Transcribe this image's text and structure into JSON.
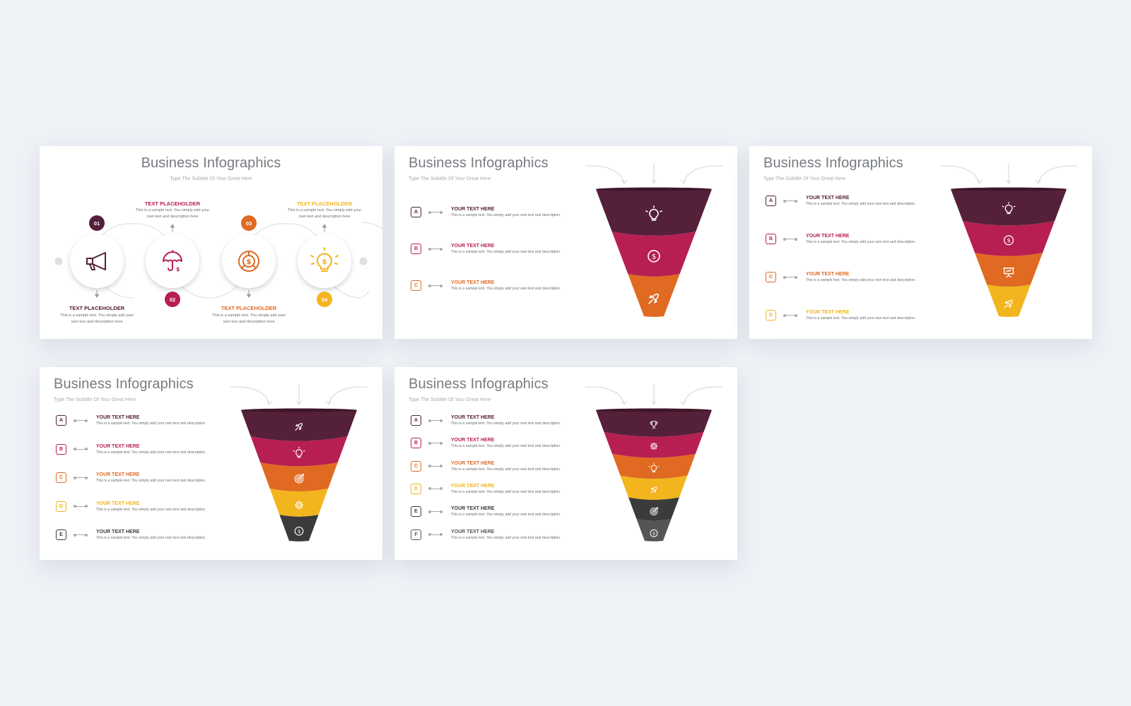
{
  "colors": {
    "plum": "#55203a",
    "crimson": "#b71f52",
    "orange": "#e06a22",
    "yellow": "#f2b51d",
    "charcoal": "#3b3b3b",
    "gray": "#555555"
  },
  "slides": [
    {
      "title": "Business Infographics",
      "subtitle": "Type The Subtitle Of Your Great Here",
      "steps": [
        {
          "number": "01",
          "title": "TEXT PLACEHOLDER",
          "desc": "This is a sample text. You simply add your own text and description here",
          "icon": "megaphone-icon"
        },
        {
          "number": "02",
          "title": "TEXT PLACEHOLDER",
          "desc": "This is a sample text. You simply add your own text and description here",
          "icon": "umbrella-dollar-icon"
        },
        {
          "number": "03",
          "title": "TEXT PLACEHOLDER",
          "desc": "This is a sample text. You simply add your own text and description here",
          "icon": "dollar-chart-icon"
        },
        {
          "number": "04",
          "title": "TEXT PLACEHOLDER",
          "desc": "This is a sample text. You simply add your own text and description here",
          "icon": "lightbulb-dollar-icon"
        }
      ]
    },
    {
      "title": "Business Infographics",
      "subtitle": "Type The Subtitle Of Your Great Here",
      "items": [
        {
          "letter": "A",
          "title": "YOUR TEXT HERE",
          "desc": "This is a sample text. You simply add your own text and description."
        },
        {
          "letter": "B",
          "title": "YOUR TEXT HERE",
          "desc": "This is a sample text. You simply add your own text and description."
        },
        {
          "letter": "C",
          "title": "YOUR TEXT HERE",
          "desc": "This is a sample text. You simply add your own text and description."
        }
      ],
      "funnel_icons": [
        "lightbulb-icon",
        "dollar-icon",
        "rocket-icon"
      ]
    },
    {
      "title": "Business Infographics",
      "subtitle": "Type The Subtitle Of Your Great Here",
      "items": [
        {
          "letter": "A",
          "title": "YOUR TEXT HERE",
          "desc": "This is a sample text. You simply add your own text and description."
        },
        {
          "letter": "B",
          "title": "YOUR TEXT HERE",
          "desc": "This is a sample text. You simply add your own text and description."
        },
        {
          "letter": "C",
          "title": "YOUR TEXT HERE",
          "desc": "This is a sample text. You simply add your own text and description."
        },
        {
          "letter": "D",
          "title": "YOUR TEXT HERE",
          "desc": "This is a sample text. You simply add your own text and description."
        }
      ],
      "funnel_icons": [
        "lightbulb-icon",
        "dollar-icon",
        "presentation-icon",
        "rocket-icon"
      ]
    },
    {
      "title": "Business Infographics",
      "subtitle": "Type The Subtitle Of Your Great Here",
      "items": [
        {
          "letter": "A",
          "title": "YOUR TEXT HERE",
          "desc": "This is a sample text. You simply add your own text and description."
        },
        {
          "letter": "B",
          "title": "YOUR TEXT HERE",
          "desc": "This is a sample text. You simply add your own text and description."
        },
        {
          "letter": "C",
          "title": "YOUR TEXT HERE",
          "desc": "This is a sample text. You simply add your own text and description."
        },
        {
          "letter": "D",
          "title": "YOUR TEXT HERE",
          "desc": "This is a sample text. You simply add your own text and description."
        },
        {
          "letter": "E",
          "title": "YOUR TEXT HERE",
          "desc": "This is a sample text. You simply add your own text and description."
        }
      ],
      "funnel_icons": [
        "rocket-icon",
        "lightbulb-icon",
        "target-icon",
        "gear-icon",
        "dollar-icon"
      ]
    },
    {
      "title": "Business Infographics",
      "subtitle": "Type The Subtitle Of Your Great Here",
      "items": [
        {
          "letter": "A",
          "title": "YOUR TEXT HERE",
          "desc": "This is a sample text. You simply add your own text and description."
        },
        {
          "letter": "B",
          "title": "YOUR TEXT HERE",
          "desc": "This is a sample text. You simply add your own text and description."
        },
        {
          "letter": "C",
          "title": "YOUR TEXT HERE",
          "desc": "This is a sample text. You simply add your own text and description."
        },
        {
          "letter": "D",
          "title": "YOUR TEXT HERE",
          "desc": "This is a sample text. You simply add your own text and description."
        },
        {
          "letter": "E",
          "title": "YOUR TEXT HERE",
          "desc": "This is a sample text. You simply add your own text and description."
        },
        {
          "letter": "F",
          "title": "YOUR TEXT HERE",
          "desc": "This is a sample text. You simply add your own text and description."
        }
      ],
      "funnel_icons": [
        "trophy-icon",
        "gear-icon",
        "lightbulb-icon",
        "rocket-icon",
        "target-icon",
        "dollar-icon"
      ]
    }
  ]
}
